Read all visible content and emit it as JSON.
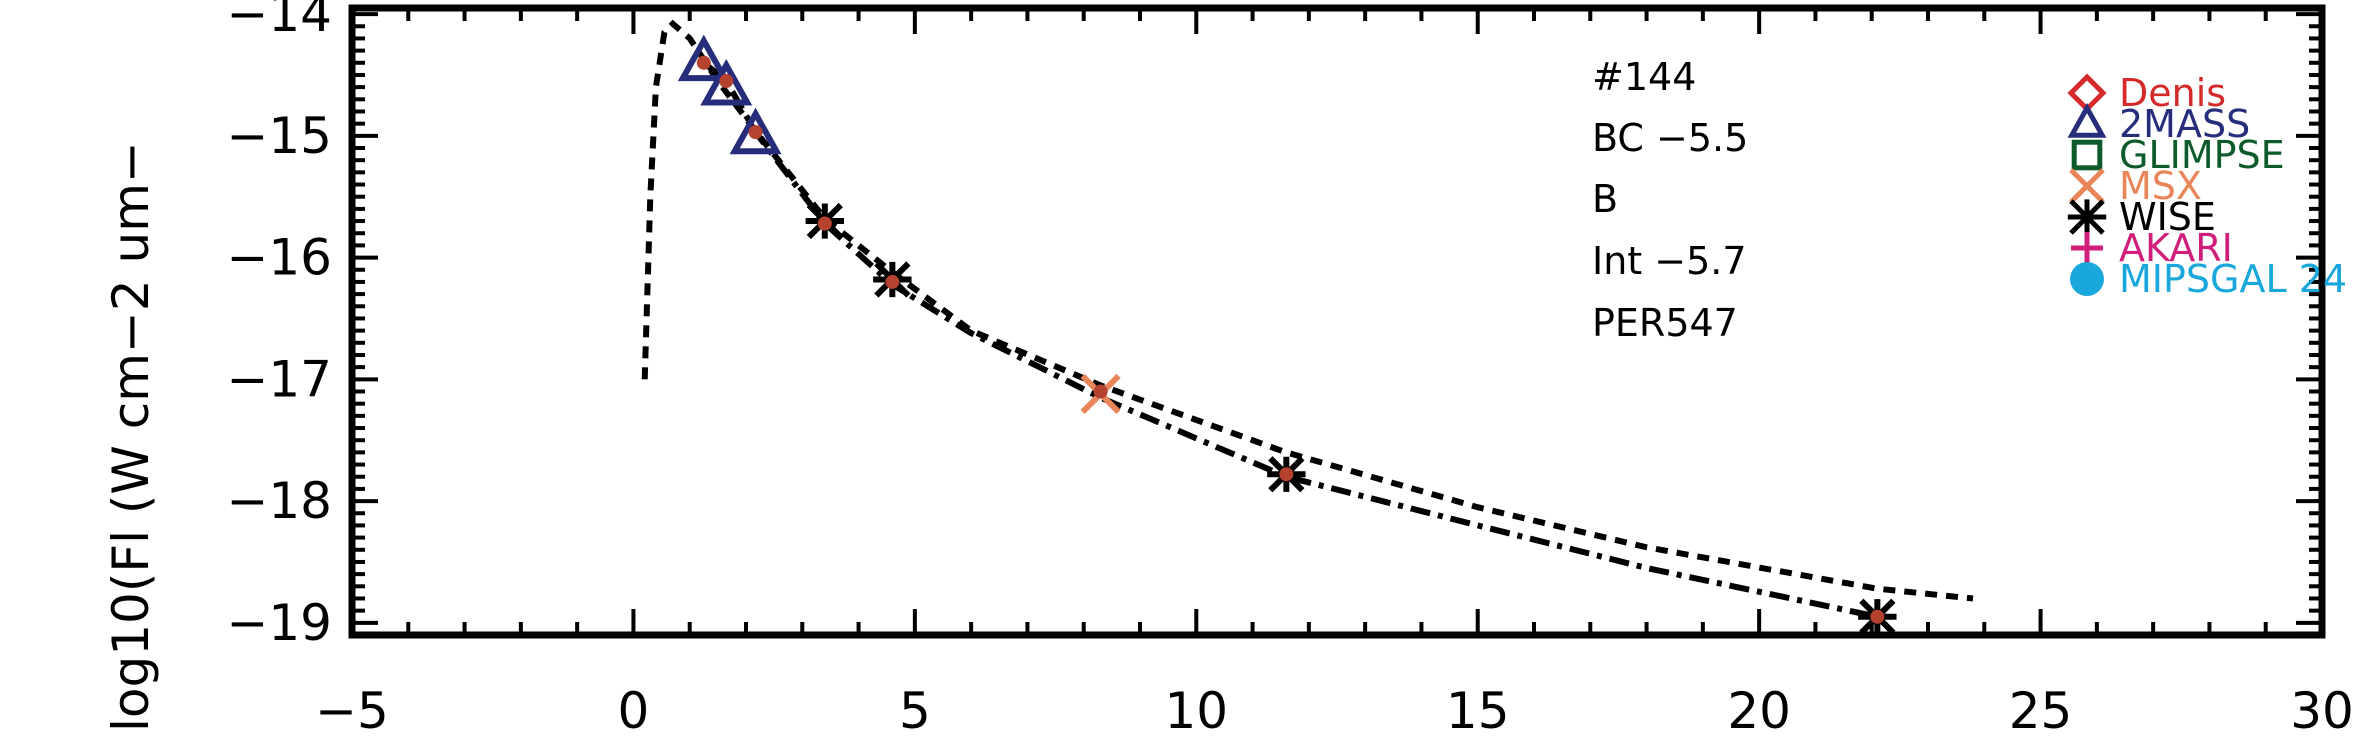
{
  "chart_data": {
    "type": "scatter",
    "xlim": [
      -5,
      30
    ],
    "ylim": [
      -19.1,
      -13.95
    ],
    "x_ticks": [
      -5,
      0,
      5,
      10,
      15,
      20,
      25,
      30
    ],
    "x_tick_labels": [
      "−5",
      "0",
      "5",
      "10",
      "15",
      "20",
      "25",
      "30"
    ],
    "y_ticks": [
      -14,
      -15,
      -16,
      -17,
      -18,
      -19
    ],
    "y_tick_labels": [
      "−14",
      "−15",
      "−16",
      "−17",
      "−18",
      "−19"
    ],
    "ylabel": "log10(Fl (W cm−2 um−",
    "xlabel": "",
    "annotations": [
      "#144",
      "BC −5.5",
      "B",
      "Int −5.7",
      "PER547"
    ],
    "legend_position": "top-right",
    "legend": [
      {
        "label": "Denis",
        "marker": "diamond",
        "color": "#d42a2a"
      },
      {
        "label": "2MASS",
        "marker": "triangle",
        "color": "#262d7a"
      },
      {
        "label": "GLIMPSE",
        "marker": "square",
        "color": "#0d5a2b"
      },
      {
        "label": "MSX",
        "marker": "x",
        "color": "#e8865a"
      },
      {
        "label": "WISE",
        "marker": "asterisk",
        "color": "#000000"
      },
      {
        "label": "AKARI",
        "marker": "plus",
        "color": "#d01e7a"
      },
      {
        "label": "MIPSGAL 24",
        "marker": "circle",
        "color": "#1aa8dc"
      }
    ],
    "series": [
      {
        "name": "2MASS",
        "marker": "triangle",
        "color": "#262d7a",
        "x": [
          1.25,
          1.65,
          2.17
        ],
        "y": [
          -14.4,
          -14.6,
          -15.0
        ]
      },
      {
        "name": "MSX",
        "marker": "x",
        "color": "#e8865a",
        "x": [
          8.3
        ],
        "y": [
          -17.12
        ]
      },
      {
        "name": "WISE",
        "marker": "asterisk",
        "color": "#000000",
        "x": [
          3.4,
          4.6,
          11.6,
          22.1
        ],
        "y": [
          -15.7,
          -16.18,
          -17.78,
          -18.95
        ]
      }
    ],
    "model_points": {
      "color": "#b5422e",
      "x": [
        1.25,
        1.65,
        2.17,
        3.4,
        4.6,
        8.3,
        11.6,
        22.1
      ],
      "y": [
        -14.4,
        -14.55,
        -14.97,
        -15.72,
        -16.2,
        -17.1,
        -17.78,
        -18.95
      ]
    },
    "curves": [
      {
        "style": "dashed",
        "x": [
          0.2,
          0.3,
          0.4,
          0.55,
          0.7,
          1.0,
          1.5,
          2.2,
          3.4,
          4.6,
          6.0,
          8.3,
          11.6,
          15.0,
          18.0,
          22.1,
          23.8
        ],
        "y": [
          -17.0,
          -15.5,
          -14.6,
          -14.15,
          -14.08,
          -14.2,
          -14.55,
          -14.98,
          -15.68,
          -16.12,
          -16.6,
          -17.05,
          -17.6,
          -18.05,
          -18.38,
          -18.72,
          -18.8
        ]
      },
      {
        "style": "dashdot",
        "x": [
          1.25,
          1.65,
          2.17,
          3.4,
          4.6,
          6.0,
          8.3,
          11.6,
          15.0,
          18.0,
          22.1
        ],
        "y": [
          -14.4,
          -14.55,
          -14.97,
          -15.72,
          -16.22,
          -16.62,
          -17.15,
          -17.8,
          -18.2,
          -18.55,
          -18.95
        ]
      }
    ]
  }
}
